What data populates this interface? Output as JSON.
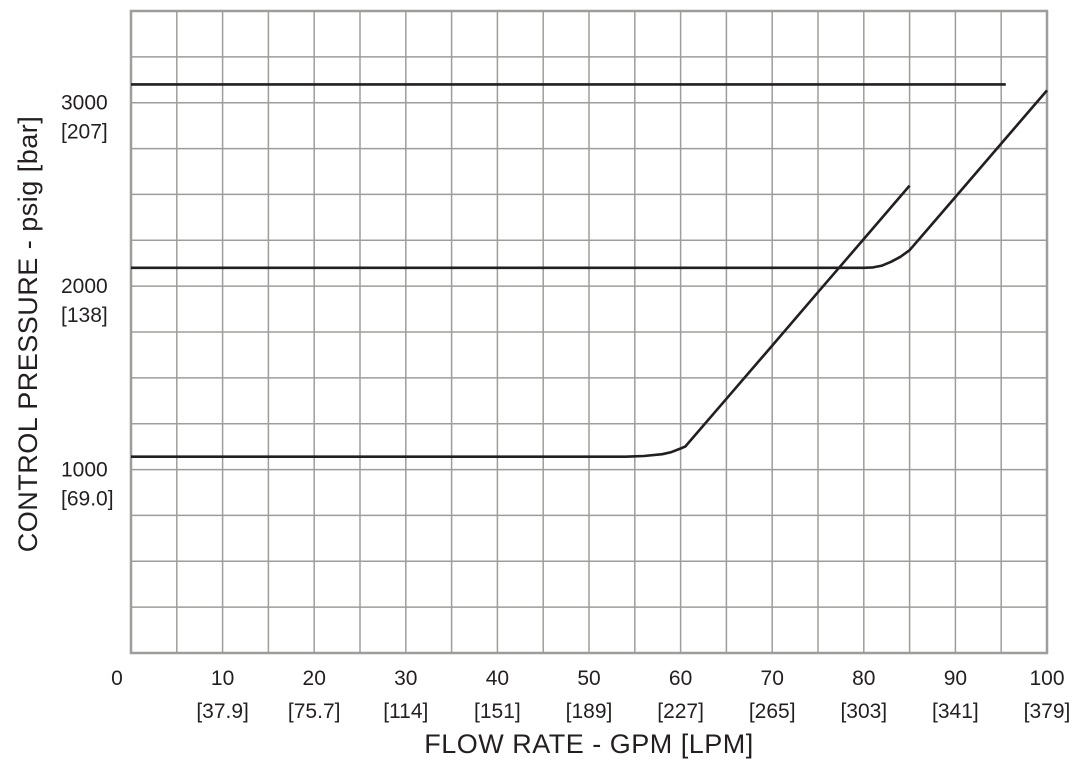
{
  "chart_data": {
    "type": "line",
    "title": "",
    "xlabel": "FLOW RATE - GPM [LPM]",
    "ylabel": "CONTROL PRESSURE - psig [bar]",
    "xlim": [
      0,
      100
    ],
    "ylim": [
      0,
      3500
    ],
    "grid": true,
    "x_ticks": [
      {
        "value": 0,
        "label": "0",
        "sublabel": ""
      },
      {
        "value": 10,
        "label": "10",
        "sublabel": "[37.9]"
      },
      {
        "value": 20,
        "label": "20",
        "sublabel": "[75.7]"
      },
      {
        "value": 30,
        "label": "30",
        "sublabel": "[114]"
      },
      {
        "value": 40,
        "label": "40",
        "sublabel": "[151]"
      },
      {
        "value": 50,
        "label": "50",
        "sublabel": "[189]"
      },
      {
        "value": 60,
        "label": "60",
        "sublabel": "[227]"
      },
      {
        "value": 70,
        "label": "70",
        "sublabel": "[265]"
      },
      {
        "value": 80,
        "label": "80",
        "sublabel": "[303]"
      },
      {
        "value": 90,
        "label": "90",
        "sublabel": "[341]"
      },
      {
        "value": 100,
        "label": "100",
        "sublabel": "[379]"
      }
    ],
    "y_ticks": [
      {
        "value": 1000,
        "label": "1000",
        "sublabel": "[69.0]"
      },
      {
        "value": 2000,
        "label": "2000",
        "sublabel": "[138]"
      },
      {
        "value": 3000,
        "label": "3000",
        "sublabel": "[207]"
      }
    ],
    "x_grid_step": 5,
    "y_grid_step": 250,
    "series": [
      {
        "x": [
          0,
          95.5
        ],
        "y": [
          3100,
          3100
        ]
      },
      {
        "x": [
          0,
          80,
          81,
          82,
          83,
          84,
          85,
          87.5,
          90,
          95,
          100
        ],
        "y": [
          2100,
          2100,
          2102,
          2112,
          2133,
          2160,
          2196,
          2341,
          2486,
          2777,
          3067
        ]
      },
      {
        "x": [
          0,
          54,
          56,
          58,
          59,
          60,
          60.5,
          65,
          70,
          75,
          80,
          85
        ],
        "y": [
          1070,
          1070,
          1074,
          1084,
          1095,
          1115,
          1125,
          1386,
          1676,
          1967,
          2257,
          2548
        ]
      }
    ]
  }
}
